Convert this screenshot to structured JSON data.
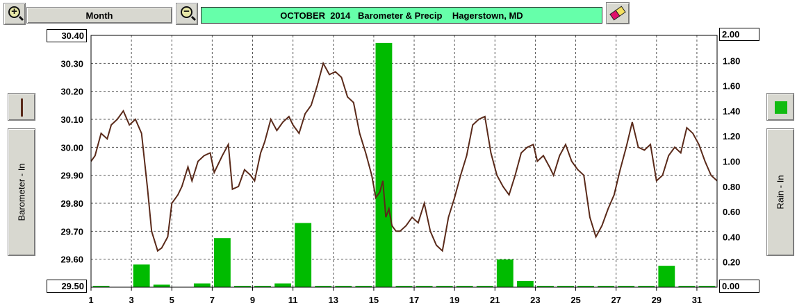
{
  "toolbar": {
    "zoom_in_icon": "zoom-in-icon",
    "zoom_out_icon": "zoom-out-icon",
    "period_label": "Month",
    "title": "OCTOBER  2014   Barometer & Precip    Hagerstown, MD",
    "print_icon": "eraser-icon"
  },
  "left_panel": {
    "series_color": "#5a2a1a",
    "axis_label": "Barometer - In"
  },
  "right_panel": {
    "series_color": "#22cc22",
    "axis_label": "Rain - In"
  },
  "colors": {
    "title_bg": "#66ffaa",
    "pressure_line": "#5a2a1a",
    "rain_bar": "#00bb00"
  },
  "chart_data": {
    "type": "line+bar",
    "title": "OCTOBER  2014   Barometer & Precip    Hagerstown, MD",
    "x_ticks": [
      "1",
      "3",
      "5",
      "7",
      "9",
      "11",
      "13",
      "15",
      "17",
      "19",
      "21",
      "23",
      "25",
      "27",
      "29",
      "31"
    ],
    "xlim": [
      1,
      32
    ],
    "grid": true,
    "y_left": {
      "label": "Barometer - In",
      "ylim": [
        29.5,
        30.4
      ],
      "ticks": [
        "30.40",
        "30.30",
        "30.20",
        "30.10",
        "30.00",
        "29.90",
        "29.80",
        "29.70",
        "29.60",
        "29.50"
      ]
    },
    "y_right": {
      "label": "Rain - In",
      "ylim": [
        0,
        2.0
      ],
      "ticks": [
        "2.00",
        "1.80",
        "1.60",
        "1.40",
        "1.20",
        "1.00",
        "0.80",
        "0.60",
        "0.40",
        "0.20",
        "0.00"
      ]
    },
    "series": [
      {
        "name": "Barometer - In",
        "type": "line",
        "x": [
          1.0,
          1.2,
          1.5,
          1.8,
          2.0,
          2.3,
          2.6,
          2.9,
          3.2,
          3.5,
          3.8,
          4.0,
          4.3,
          4.5,
          4.8,
          5.0,
          5.3,
          5.5,
          5.8,
          6.0,
          6.3,
          6.6,
          6.9,
          7.1,
          7.5,
          7.8,
          8.0,
          8.3,
          8.6,
          8.9,
          9.1,
          9.4,
          9.6,
          9.9,
          10.2,
          10.5,
          10.8,
          11.0,
          11.3,
          11.6,
          11.9,
          12.2,
          12.5,
          12.8,
          13.1,
          13.4,
          13.7,
          14.0,
          14.3,
          14.6,
          14.9,
          15.1,
          15.3,
          15.45,
          15.6,
          15.75,
          15.9,
          16.1,
          16.3,
          16.6,
          16.9,
          17.2,
          17.5,
          17.8,
          18.1,
          18.4,
          18.7,
          19.0,
          19.3,
          19.6,
          19.9,
          20.2,
          20.5,
          20.8,
          21.1,
          21.4,
          21.7,
          22.0,
          22.3,
          22.6,
          22.9,
          23.1,
          23.4,
          23.7,
          23.9,
          24.2,
          24.5,
          24.8,
          25.1,
          25.4,
          25.7,
          26.0,
          26.3,
          26.6,
          26.9,
          27.2,
          27.5,
          27.8,
          28.1,
          28.4,
          28.7,
          29.0,
          29.3,
          29.6,
          29.9,
          30.2,
          30.5,
          30.8,
          31.1,
          31.4,
          31.7,
          32.0
        ],
        "values": [
          29.95,
          29.97,
          30.05,
          30.03,
          30.08,
          30.1,
          30.13,
          30.08,
          30.1,
          30.05,
          29.85,
          29.7,
          29.63,
          29.64,
          29.68,
          29.8,
          29.83,
          29.86,
          29.93,
          29.88,
          29.95,
          29.97,
          29.98,
          29.91,
          29.97,
          30.01,
          29.85,
          29.86,
          29.92,
          29.9,
          29.88,
          29.98,
          30.02,
          30.1,
          30.06,
          30.09,
          30.11,
          30.08,
          30.05,
          30.12,
          30.15,
          30.22,
          30.3,
          30.26,
          30.27,
          30.25,
          30.18,
          30.16,
          30.05,
          29.98,
          29.9,
          29.82,
          29.84,
          29.88,
          29.75,
          29.78,
          29.72,
          29.7,
          29.7,
          29.72,
          29.75,
          29.73,
          29.8,
          29.7,
          29.65,
          29.63,
          29.75,
          29.82,
          29.9,
          29.97,
          30.08,
          30.1,
          30.11,
          29.98,
          29.9,
          29.86,
          29.83,
          29.9,
          29.98,
          30.0,
          30.01,
          29.95,
          29.97,
          29.93,
          29.9,
          29.97,
          30.01,
          29.95,
          29.92,
          29.9,
          29.75,
          29.68,
          29.72,
          29.78,
          29.83,
          29.92,
          30.0,
          30.09,
          30.0,
          29.99,
          30.01,
          29.88,
          29.9,
          29.97,
          30.0,
          29.98,
          30.07,
          30.05,
          30.01,
          29.95,
          29.9,
          29.88
        ]
      },
      {
        "name": "Rain - In",
        "type": "bar",
        "axis": "right",
        "x": [
          1.5,
          3.5,
          4.5,
          6.5,
          7.5,
          8.5,
          9.5,
          10.5,
          11.5,
          12.5,
          13.5,
          14.5,
          15.5,
          16.5,
          17.5,
          18.5,
          19.5,
          20.5,
          21.5,
          22.5,
          23.5,
          24.5,
          25.5,
          26.5,
          27.5,
          28.5,
          29.5,
          30.5,
          31.5
        ],
        "values": [
          0.01,
          0.18,
          0.02,
          0.03,
          0.39,
          0.0,
          0.0,
          0.03,
          0.51,
          0.0,
          0.0,
          0.0,
          1.94,
          0.0,
          0.0,
          0.0,
          0.0,
          0.0,
          0.22,
          0.05,
          0.0,
          0.0,
          0.0,
          0.0,
          0.0,
          0.0,
          0.17,
          0.0,
          0.0
        ]
      }
    ]
  }
}
